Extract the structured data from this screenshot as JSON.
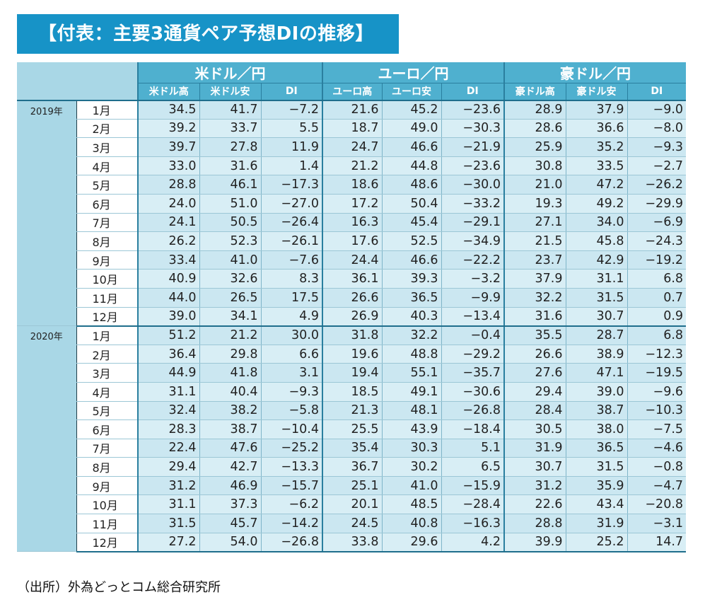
{
  "title": "【付表：主要3通貨ペア予想DIの推移】",
  "groups": [
    {
      "name": "米ドル／円",
      "cols": [
        "米ドル高",
        "米ドル安",
        "DI"
      ]
    },
    {
      "name": "ユーロ／円",
      "cols": [
        "ユーロ高",
        "ユーロ安",
        "DI"
      ]
    },
    {
      "name": "豪ドル／円",
      "cols": [
        "豪ドル高",
        "豪ドル安",
        "DI"
      ]
    }
  ],
  "years": [
    {
      "label": "2019年",
      "rows": [
        {
          "month": "1月",
          "values": [
            "34.5",
            "41.7",
            "−7.2",
            "21.6",
            "45.2",
            "−23.6",
            "28.9",
            "37.9",
            "−9.0"
          ]
        },
        {
          "month": "2月",
          "values": [
            "39.2",
            "33.7",
            "5.5",
            "18.7",
            "49.0",
            "−30.3",
            "28.6",
            "36.6",
            "−8.0"
          ]
        },
        {
          "month": "3月",
          "values": [
            "39.7",
            "27.8",
            "11.9",
            "24.7",
            "46.6",
            "−21.9",
            "25.9",
            "35.2",
            "−9.3"
          ]
        },
        {
          "month": "4月",
          "values": [
            "33.0",
            "31.6",
            "1.4",
            "21.2",
            "44.8",
            "−23.6",
            "30.8",
            "33.5",
            "−2.7"
          ]
        },
        {
          "month": "5月",
          "values": [
            "28.8",
            "46.1",
            "−17.3",
            "18.6",
            "48.6",
            "−30.0",
            "21.0",
            "47.2",
            "−26.2"
          ]
        },
        {
          "month": "6月",
          "values": [
            "24.0",
            "51.0",
            "−27.0",
            "17.2",
            "50.4",
            "−33.2",
            "19.3",
            "49.2",
            "−29.9"
          ]
        },
        {
          "month": "7月",
          "values": [
            "24.1",
            "50.5",
            "−26.4",
            "16.3",
            "45.4",
            "−29.1",
            "27.1",
            "34.0",
            "−6.9"
          ]
        },
        {
          "month": "8月",
          "values": [
            "26.2",
            "52.3",
            "−26.1",
            "17.6",
            "52.5",
            "−34.9",
            "21.5",
            "45.8",
            "−24.3"
          ]
        },
        {
          "month": "9月",
          "values": [
            "33.4",
            "41.0",
            "−7.6",
            "24.4",
            "46.6",
            "−22.2",
            "23.7",
            "42.9",
            "−19.2"
          ]
        },
        {
          "month": "10月",
          "values": [
            "40.9",
            "32.6",
            "8.3",
            "36.1",
            "39.3",
            "−3.2",
            "37.9",
            "31.1",
            "6.8"
          ]
        },
        {
          "month": "11月",
          "values": [
            "44.0",
            "26.5",
            "17.5",
            "26.6",
            "36.5",
            "−9.9",
            "32.2",
            "31.5",
            "0.7"
          ]
        },
        {
          "month": "12月",
          "values": [
            "39.0",
            "34.1",
            "4.9",
            "26.9",
            "40.3",
            "−13.4",
            "31.6",
            "30.7",
            "0.9"
          ]
        }
      ]
    },
    {
      "label": "2020年",
      "rows": [
        {
          "month": "1月",
          "values": [
            "51.2",
            "21.2",
            "30.0",
            "31.8",
            "32.2",
            "−0.4",
            "35.5",
            "28.7",
            "6.8"
          ]
        },
        {
          "month": "2月",
          "values": [
            "36.4",
            "29.8",
            "6.6",
            "19.6",
            "48.8",
            "−29.2",
            "26.6",
            "38.9",
            "−12.3"
          ]
        },
        {
          "month": "3月",
          "values": [
            "44.9",
            "41.8",
            "3.1",
            "19.4",
            "55.1",
            "−35.7",
            "27.6",
            "47.1",
            "−19.5"
          ]
        },
        {
          "month": "4月",
          "values": [
            "31.1",
            "40.4",
            "−9.3",
            "18.5",
            "49.1",
            "−30.6",
            "29.4",
            "39.0",
            "−9.6"
          ]
        },
        {
          "month": "5月",
          "values": [
            "32.4",
            "38.2",
            "−5.8",
            "21.3",
            "48.1",
            "−26.8",
            "28.4",
            "38.7",
            "−10.3"
          ]
        },
        {
          "month": "6月",
          "values": [
            "28.3",
            "38.7",
            "−10.4",
            "25.5",
            "43.9",
            "−18.4",
            "30.5",
            "38.0",
            "−7.5"
          ]
        },
        {
          "month": "7月",
          "values": [
            "22.4",
            "47.6",
            "−25.2",
            "35.4",
            "30.3",
            "5.1",
            "31.9",
            "36.5",
            "−4.6"
          ]
        },
        {
          "month": "8月",
          "values": [
            "29.4",
            "42.7",
            "−13.3",
            "36.7",
            "30.2",
            "6.5",
            "30.7",
            "31.5",
            "−0.8"
          ]
        },
        {
          "month": "9月",
          "values": [
            "31.2",
            "46.9",
            "−15.7",
            "25.1",
            "41.0",
            "−15.9",
            "31.2",
            "35.9",
            "−4.7"
          ]
        },
        {
          "month": "10月",
          "values": [
            "31.1",
            "37.3",
            "−6.2",
            "20.1",
            "48.5",
            "−28.4",
            "22.6",
            "43.4",
            "−20.8"
          ]
        },
        {
          "month": "11月",
          "values": [
            "31.5",
            "45.7",
            "−14.2",
            "24.5",
            "40.8",
            "−16.3",
            "28.8",
            "31.9",
            "−3.1"
          ]
        },
        {
          "month": "12月",
          "values": [
            "27.2",
            "54.0",
            "−26.8",
            "33.8",
            "29.6",
            "4.2",
            "39.9",
            "25.2",
            "14.7"
          ]
        }
      ]
    }
  ],
  "source": "（出所）外為どっとコム総合研究所"
}
